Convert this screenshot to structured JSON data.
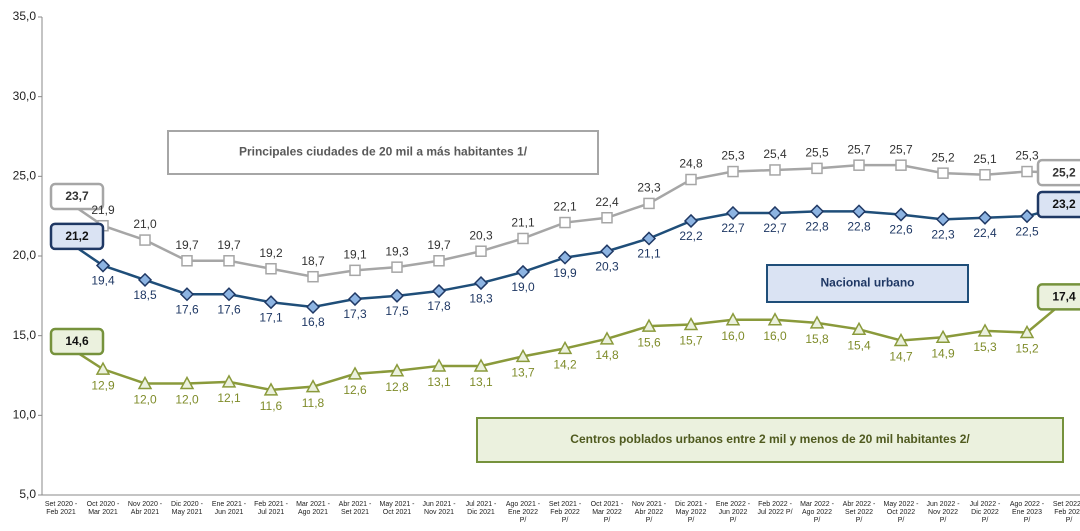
{
  "chart_data": {
    "type": "line",
    "categories": [
      "Set 2020 - Feb 2021",
      "Oct 2020 - Mar 2021",
      "Nov 2020 - Abr 2021",
      "Dic 2020 - May 2021",
      "Ene 2021 - Jun 2021",
      "Feb 2021 - Jul 2021",
      "Mar 2021 - Ago 2021",
      "Abr 2021 - Set 2021",
      "May 2021 - Oct 2021",
      "Jun 2021 - Nov 2021",
      "Jul 2021 - Dic 2021",
      "Ago 2021 - Ene 2022 P/",
      "Set 2021 - Feb 2022 P/",
      "Oct 2021 - Mar 2022 P/",
      "Nov 2021 - Abr 2022 P/",
      "Dic 2021 - May 2022 P/",
      "Ene 2022 - Jun 2022 P/",
      "Feb 2022 - Jul 2022 P/",
      "Mar 2022 - Ago 2022 P/",
      "Abr 2022 - Set 2022 P/",
      "May 2022 - Oct 2022 P/",
      "Jun 2022 - Nov 2022 P/",
      "Jul 2022 - Dic 2022 P/",
      "Ago 2022 - Ene 2023 P/",
      "Set 2022 - Feb 2023 P/"
    ],
    "series": [
      {
        "name": "Principales ciudades de 20 mil a más habitantes 1/",
        "color": "#a6a6a6",
        "values": [
          23.7,
          21.9,
          21.0,
          19.7,
          19.7,
          19.2,
          18.7,
          19.1,
          19.3,
          19.7,
          20.3,
          21.1,
          22.1,
          22.4,
          23.3,
          24.8,
          25.3,
          25.4,
          25.5,
          25.7,
          25.7,
          25.2,
          25.1,
          25.3,
          25.2
        ],
        "value_labels": [
          "23,7",
          "21,9",
          "21,0",
          "19,7",
          "19,7",
          "19,2",
          "18,7",
          "19,1",
          "19,3",
          "19,7",
          "20,3",
          "21,1",
          "22,1",
          "22,4",
          "23,3",
          "24,8",
          "25,3",
          "25,4",
          "25,5",
          "25,7",
          "25,7",
          "25,2",
          "25,1",
          "25,3",
          "25,2"
        ]
      },
      {
        "name": "Nacional urbano",
        "color": "#1f4e79",
        "values": [
          21.2,
          19.4,
          18.5,
          17.6,
          17.6,
          17.1,
          16.8,
          17.3,
          17.5,
          17.8,
          18.3,
          19.0,
          19.9,
          20.3,
          21.1,
          22.2,
          22.7,
          22.7,
          22.8,
          22.8,
          22.6,
          22.3,
          22.4,
          22.5,
          23.2
        ],
        "value_labels": [
          "21,2",
          "19,4",
          "18,5",
          "17,6",
          "17,6",
          "17,1",
          "16,8",
          "17,3",
          "17,5",
          "17,8",
          "18,3",
          "19,0",
          "19,9",
          "20,3",
          "21,1",
          "22,2",
          "22,7",
          "22,7",
          "22,8",
          "22,8",
          "22,6",
          "22,3",
          "22,4",
          "22,5",
          "23,2"
        ]
      },
      {
        "name": "Centros poblados urbanos entre 2 mil y menos de 20 mil habitantes 2/",
        "color": "#8a9a3b",
        "values": [
          14.6,
          12.9,
          12.0,
          12.0,
          12.1,
          11.6,
          11.8,
          12.6,
          12.8,
          13.1,
          13.1,
          13.7,
          14.2,
          14.8,
          15.6,
          15.7,
          16.0,
          16.0,
          15.8,
          15.4,
          14.7,
          14.9,
          15.3,
          15.2,
          17.4
        ],
        "value_labels": [
          "14,6",
          "12,9",
          "12,0",
          "12,0",
          "12,1",
          "11,6",
          "11,8",
          "12,6",
          "12,8",
          "13,1",
          "13,1",
          "13,7",
          "14,2",
          "14,8",
          "15,6",
          "15,7",
          "16,0",
          "16,0",
          "15,8",
          "15,4",
          "14,7",
          "14,9",
          "15,3",
          "15,2",
          "17,4"
        ]
      }
    ],
    "ylim": [
      5,
      35
    ],
    "yticks": [
      {
        "value": 5,
        "label": "5,0"
      },
      {
        "value": 10,
        "label": "10,0"
      },
      {
        "value": 15,
        "label": "15,0"
      },
      {
        "value": 20,
        "label": "20,0"
      },
      {
        "value": 25,
        "label": "25,0"
      },
      {
        "value": 30,
        "label": "30,0"
      },
      {
        "value": 35,
        "label": "35,0"
      }
    ],
    "grid": false
  }
}
